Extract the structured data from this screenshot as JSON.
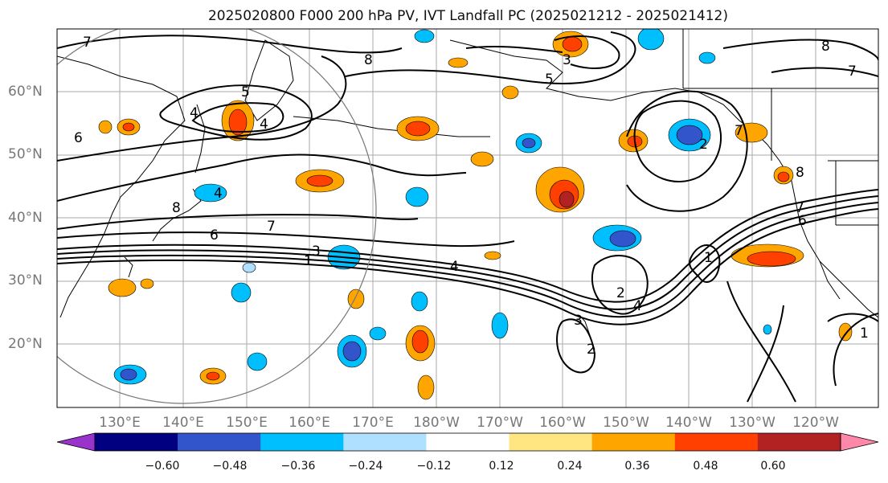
{
  "title": "2025020800 F000 200 hPa PV, IVT Landfall PC (2025021212 - 2025021412)",
  "lat_labels": [
    "60°N",
    "50°N",
    "40°N",
    "30°N",
    "20°N"
  ],
  "lon_labels": [
    "130°E",
    "140°E",
    "150°E",
    "160°E",
    "170°E",
    "180°W",
    "170°W",
    "160°W",
    "150°W",
    "140°W",
    "130°W",
    "120°W"
  ],
  "colorbar": {
    "ticks": [
      "−0.60",
      "−0.48",
      "−0.36",
      "−0.24",
      "−0.12",
      "0.12",
      "0.24",
      "0.36",
      "0.48",
      "0.60"
    ],
    "colors": [
      "#9933cc",
      "#000080",
      "#3355cc",
      "#00bfff",
      "#b0e0ff",
      "#ffffff",
      "#ffe680",
      "#ffa500",
      "#ff4000",
      "#b22222",
      "#ff88aa"
    ]
  },
  "contour_labels": [
    "7",
    "8",
    "5",
    "4",
    "6",
    "4",
    "4",
    "8",
    "7",
    "6",
    "3",
    "1",
    "4",
    "3",
    "5",
    "8",
    "7",
    "8",
    "2",
    "7",
    "6",
    "1",
    "2",
    "3",
    "4",
    "7",
    "1",
    "2"
  ]
}
